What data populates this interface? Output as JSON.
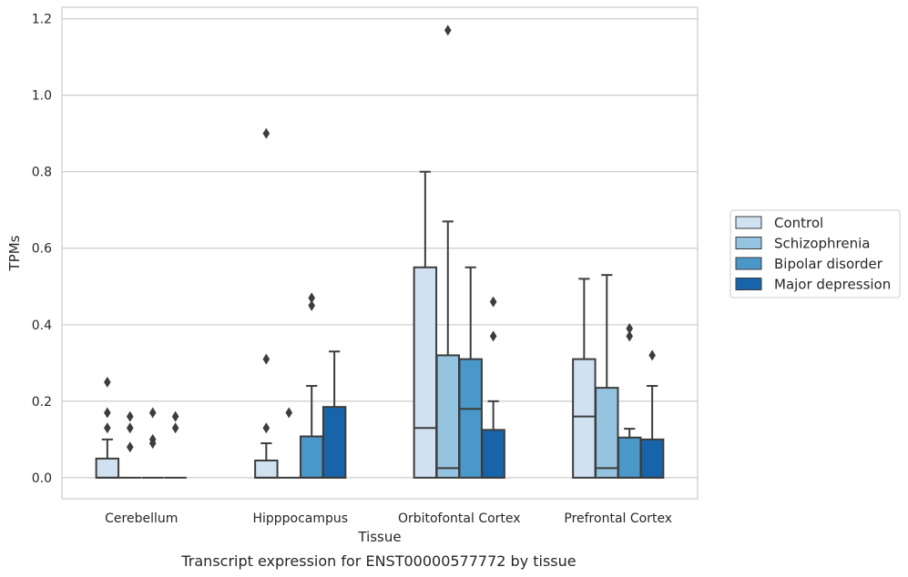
{
  "caption": "Transcript expression for ENST00000577772 by tissue",
  "chart_data": {
    "type": "boxplot",
    "xlabel": "Tissue",
    "ylabel": "TPMs",
    "ylim": [
      -0.055,
      1.23
    ],
    "yticks": [
      "0.0",
      "0.2",
      "0.4",
      "0.6",
      "0.8",
      "1.0",
      "1.2"
    ],
    "grid": "horizontal",
    "legend_position": "right",
    "categories": [
      "Cerebellum",
      "Hipppocampus",
      "Orbitofontal Cortex",
      "Prefrontal Cortex"
    ],
    "series": [
      {
        "name": "Control",
        "color": "#d0e1f2",
        "boxes": [
          {
            "q1": 0.0,
            "median": 0.0,
            "q3": 0.05,
            "whisker_low": 0.0,
            "whisker_high": 0.1,
            "outliers": [
              0.13,
              0.17,
              0.25
            ]
          },
          {
            "q1": 0.0,
            "median": 0.0,
            "q3": 0.045,
            "whisker_low": 0.0,
            "whisker_high": 0.09,
            "outliers": [
              0.13,
              0.31,
              0.9
            ]
          },
          {
            "q1": 0.0,
            "median": 0.13,
            "q3": 0.55,
            "whisker_low": 0.0,
            "whisker_high": 0.8,
            "outliers": []
          },
          {
            "q1": 0.0,
            "median": 0.16,
            "q3": 0.31,
            "whisker_low": 0.0,
            "whisker_high": 0.52,
            "outliers": []
          }
        ]
      },
      {
        "name": "Schizophrenia",
        "color": "#94c4df",
        "boxes": [
          {
            "q1": 0.0,
            "median": 0.0,
            "q3": 0.0,
            "whisker_low": 0.0,
            "whisker_high": 0.0,
            "outliers": [
              0.08,
              0.13,
              0.16
            ]
          },
          {
            "q1": 0.0,
            "median": 0.0,
            "q3": 0.0,
            "whisker_low": 0.0,
            "whisker_high": 0.0,
            "outliers": [
              0.17
            ]
          },
          {
            "q1": 0.0,
            "median": 0.025,
            "q3": 0.32,
            "whisker_low": 0.0,
            "whisker_high": 0.67,
            "outliers": [
              1.17
            ]
          },
          {
            "q1": 0.0,
            "median": 0.025,
            "q3": 0.235,
            "whisker_low": 0.0,
            "whisker_high": 0.53,
            "outliers": []
          }
        ]
      },
      {
        "name": "Bipolar disorder",
        "color": "#4a98c9",
        "boxes": [
          {
            "q1": 0.0,
            "median": 0.0,
            "q3": 0.0,
            "whisker_low": 0.0,
            "whisker_high": 0.0,
            "outliers": [
              0.09,
              0.1,
              0.17
            ]
          },
          {
            "q1": 0.0,
            "median": 0.0,
            "q3": 0.108,
            "whisker_low": 0.0,
            "whisker_high": 0.24,
            "outliers": [
              0.45,
              0.47
            ]
          },
          {
            "q1": 0.0,
            "median": 0.18,
            "q3": 0.31,
            "whisker_low": 0.0,
            "whisker_high": 0.55,
            "outliers": []
          },
          {
            "q1": 0.0,
            "median": 0.0,
            "q3": 0.105,
            "whisker_low": 0.0,
            "whisker_high": 0.128,
            "outliers": [
              0.37,
              0.39
            ]
          }
        ]
      },
      {
        "name": "Major depression",
        "color": "#1764ab",
        "boxes": [
          {
            "q1": 0.0,
            "median": 0.0,
            "q3": 0.0,
            "whisker_low": 0.0,
            "whisker_high": 0.0,
            "outliers": [
              0.13,
              0.16
            ]
          },
          {
            "q1": 0.0,
            "median": 0.0,
            "q3": 0.185,
            "whisker_low": 0.0,
            "whisker_high": 0.33,
            "outliers": []
          },
          {
            "q1": 0.0,
            "median": 0.0,
            "q3": 0.125,
            "whisker_low": 0.0,
            "whisker_high": 0.2,
            "outliers": [
              0.37,
              0.46
            ]
          },
          {
            "q1": 0.0,
            "median": 0.0,
            "q3": 0.1,
            "whisker_low": 0.0,
            "whisker_high": 0.24,
            "outliers": [
              0.32
            ]
          }
        ]
      }
    ]
  }
}
